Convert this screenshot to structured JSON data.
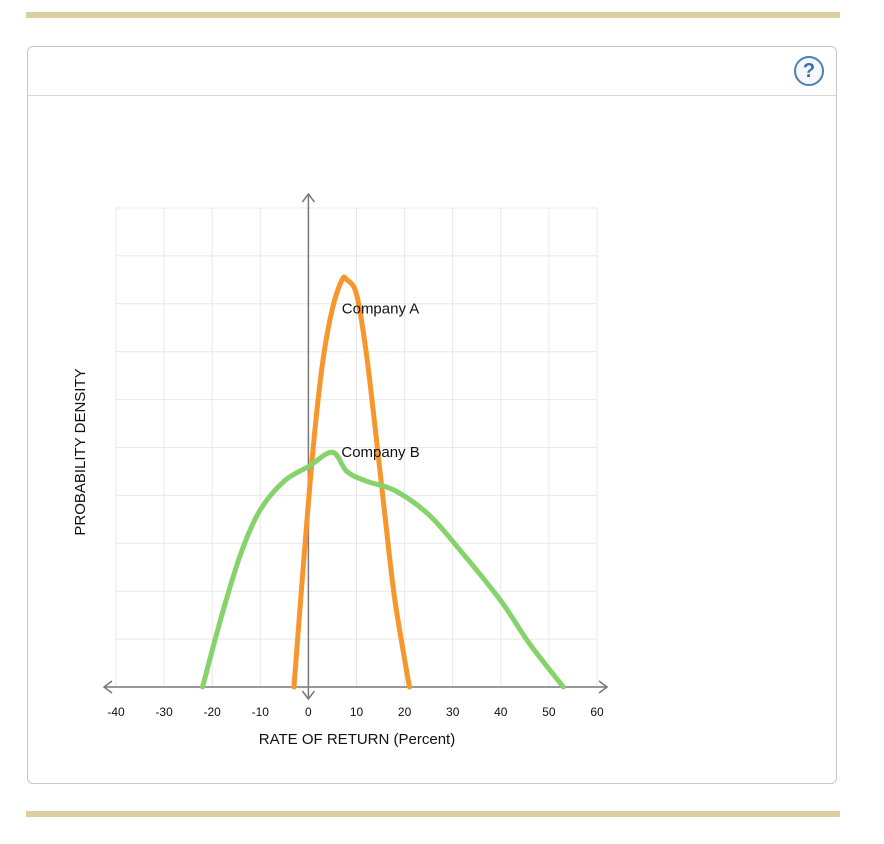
{
  "panel": {
    "help_label": "?"
  },
  "colors": {
    "rule": "#d9cfa3",
    "company_a": "#f7962d",
    "company_b": "#86d26b",
    "axis": "#777777",
    "grid": "#e8e8e8"
  },
  "chart_data": {
    "type": "line",
    "title": "",
    "xlabel": "RATE OF RETURN (Percent)",
    "ylabel": "PROBABILITY DENSITY",
    "xlim": [
      -40,
      60
    ],
    "ylim": [
      0,
      10
    ],
    "x_ticks": [
      -40,
      -30,
      -20,
      -10,
      0,
      10,
      20,
      30,
      40,
      50,
      60
    ],
    "grid": true,
    "series": [
      {
        "name": "Company A",
        "color": "#f7962d",
        "points": [
          [
            -3,
            0
          ],
          [
            -1,
            2.6
          ],
          [
            1,
            5.0
          ],
          [
            3,
            6.8
          ],
          [
            5,
            7.9
          ],
          [
            7,
            8.5
          ],
          [
            8,
            8.5
          ],
          [
            10,
            8.2
          ],
          [
            12,
            7.0
          ],
          [
            14,
            5.3
          ],
          [
            16,
            3.5
          ],
          [
            18,
            1.8
          ],
          [
            21,
            0
          ]
        ]
      },
      {
        "name": "Company B",
        "color": "#86d26b",
        "points": [
          [
            -22,
            0
          ],
          [
            -18,
            1.5
          ],
          [
            -14,
            2.8
          ],
          [
            -10,
            3.7
          ],
          [
            -5,
            4.3
          ],
          [
            0,
            4.6
          ],
          [
            5,
            4.9
          ],
          [
            8,
            4.5
          ],
          [
            12,
            4.3
          ],
          [
            18,
            4.1
          ],
          [
            25,
            3.6
          ],
          [
            32,
            2.8
          ],
          [
            40,
            1.8
          ],
          [
            46,
            0.9
          ],
          [
            53,
            0
          ]
        ]
      }
    ],
    "annotations": [
      {
        "text": "Company A",
        "x": 15,
        "y": 7.8
      },
      {
        "text": "Company B",
        "x": 15,
        "y": 4.8
      }
    ]
  }
}
